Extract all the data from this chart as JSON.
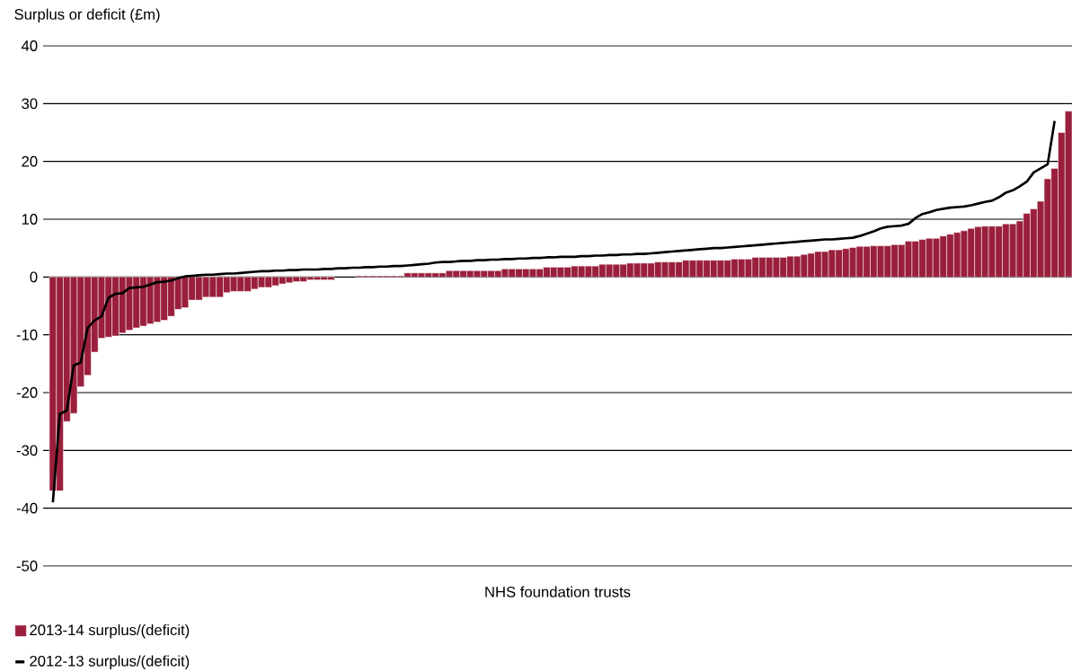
{
  "chart_data": {
    "type": "bar",
    "ylabel": "Surplus or deficit (£m)",
    "xlabel": "NHS foundation trusts",
    "categories": [
      null,
      null,
      null,
      null,
      null,
      null,
      null,
      null,
      null,
      null,
      null,
      null,
      null,
      null,
      null,
      null,
      null,
      null,
      null,
      null,
      null,
      null,
      null,
      null,
      null,
      null,
      null,
      null,
      null,
      null,
      null,
      null,
      null,
      null,
      null,
      null,
      null,
      null,
      null,
      null,
      null,
      null,
      null,
      null,
      null,
      null,
      null,
      null,
      null,
      null,
      null,
      null,
      null,
      null,
      null,
      null,
      null,
      null,
      null,
      null,
      null,
      null,
      null,
      null,
      null,
      null,
      null,
      null,
      null,
      null,
      null,
      null,
      null,
      null,
      null,
      null,
      null,
      null,
      null,
      null,
      null,
      null,
      null,
      null,
      null,
      null,
      null,
      null,
      null,
      null,
      null,
      null,
      null,
      null,
      null,
      null,
      null,
      null,
      null,
      null,
      null,
      null,
      null,
      null,
      null,
      null,
      null,
      null,
      null,
      null,
      null,
      null,
      null,
      null,
      null,
      null,
      null,
      null,
      null,
      null,
      null,
      null,
      null,
      null,
      null,
      null,
      null,
      null,
      null,
      null,
      null,
      null,
      null,
      null,
      null,
      null,
      null,
      null,
      null,
      null,
      null,
      null,
      null,
      null,
      null,
      null,
      null
    ],
    "series": [
      {
        "name": "2013-14 surplus/(deficit)",
        "color": "#9a1f3c",
        "values": [
          -37,
          -37,
          -25,
          -23.6,
          -19,
          -17,
          -13,
          -10.6,
          -10.4,
          -10.2,
          -9.7,
          -9.2,
          -8.8,
          -8.5,
          -8.1,
          -7.8,
          -7.5,
          -6.8,
          -5.6,
          -5.3,
          -4.0,
          -4.0,
          -3.5,
          -3.5,
          -3.5,
          -2.7,
          -2.5,
          -2.5,
          -2.5,
          -2.1,
          -1.8,
          -1.8,
          -1.5,
          -1.2,
          -1.0,
          -0.8,
          -0.8,
          -0.5,
          -0.5,
          -0.5,
          -0.5,
          0,
          0,
          0,
          0.2,
          0.2,
          0.2,
          0.2,
          0.2,
          0.2,
          0.2,
          0.7,
          0.7,
          0.7,
          0.7,
          0.7,
          0.7,
          1.1,
          1.1,
          1.1,
          1.1,
          1.1,
          1.1,
          1.1,
          1.1,
          1.4,
          1.4,
          1.4,
          1.4,
          1.4,
          1.4,
          1.7,
          1.7,
          1.7,
          1.7,
          1.9,
          1.9,
          1.9,
          1.9,
          2.2,
          2.2,
          2.2,
          2.2,
          2.4,
          2.4,
          2.4,
          2.4,
          2.6,
          2.6,
          2.6,
          2.6,
          2.9,
          2.9,
          2.9,
          2.9,
          2.9,
          2.9,
          2.9,
          3.1,
          3.1,
          3.1,
          3.4,
          3.4,
          3.4,
          3.4,
          3.4,
          3.6,
          3.6,
          3.9,
          4.1,
          4.4,
          4.4,
          4.7,
          4.7,
          4.9,
          5.1,
          5.3,
          5.3,
          5.4,
          5.4,
          5.4,
          5.6,
          5.6,
          6.2,
          6.2,
          6.5,
          6.7,
          6.7,
          7.1,
          7.4,
          7.7,
          8.0,
          8.4,
          8.7,
          8.8,
          8.8,
          8.8,
          9.2,
          9.2,
          9.7,
          11.0,
          11.8,
          13.1,
          17.0,
          18.8,
          25.0,
          28.7
        ]
      },
      {
        "name": "2012-13 surplus/(deficit)",
        "type": "line",
        "color": "#000000",
        "values": [
          -39.0,
          -23.7,
          -23.1,
          -15.3,
          -14.8,
          -8.8,
          -7.5,
          -6.8,
          -3.6,
          -2.9,
          -2.8,
          -1.9,
          -1.8,
          -1.7,
          -1.3,
          -0.9,
          -0.8,
          -0.6,
          -0.2,
          0.1,
          0.2,
          0.3,
          0.4,
          0.4,
          0.5,
          0.6,
          0.6,
          0.7,
          0.8,
          0.9,
          1.0,
          1.0,
          1.1,
          1.1,
          1.2,
          1.2,
          1.3,
          1.3,
          1.3,
          1.4,
          1.4,
          1.5,
          1.5,
          1.6,
          1.6,
          1.7,
          1.7,
          1.8,
          1.8,
          1.9,
          1.9,
          2.0,
          2.1,
          2.2,
          2.3,
          2.5,
          2.6,
          2.6,
          2.7,
          2.8,
          2.8,
          2.9,
          2.9,
          3.0,
          3.0,
          3.1,
          3.1,
          3.2,
          3.2,
          3.3,
          3.3,
          3.4,
          3.4,
          3.5,
          3.5,
          3.5,
          3.6,
          3.6,
          3.7,
          3.7,
          3.8,
          3.8,
          3.9,
          3.9,
          4.0,
          4.0,
          4.1,
          4.2,
          4.3,
          4.4,
          4.5,
          4.6,
          4.7,
          4.8,
          4.9,
          5.0,
          5.0,
          5.1,
          5.2,
          5.3,
          5.4,
          5.5,
          5.6,
          5.7,
          5.8,
          5.9,
          6.0,
          6.1,
          6.2,
          6.3,
          6.4,
          6.5,
          6.5,
          6.6,
          6.7,
          6.8,
          7.1,
          7.5,
          7.9,
          8.4,
          8.7,
          8.8,
          8.9,
          9.2,
          10.2,
          10.9,
          11.2,
          11.6,
          11.8,
          12.0,
          12.1,
          12.2,
          12.4,
          12.7,
          13.0,
          13.2,
          13.8,
          14.6,
          15.0,
          15.7,
          16.5,
          18.1,
          18.8,
          19.5,
          27.0,
          null,
          null
        ]
      }
    ],
    "ylim": [
      -50,
      40
    ],
    "yticks": [
      -50,
      -40,
      -30,
      -20,
      -10,
      0,
      10,
      20,
      30,
      40
    ],
    "grid": "y",
    "legend": "bottom left",
    "tick_labels": "y"
  }
}
